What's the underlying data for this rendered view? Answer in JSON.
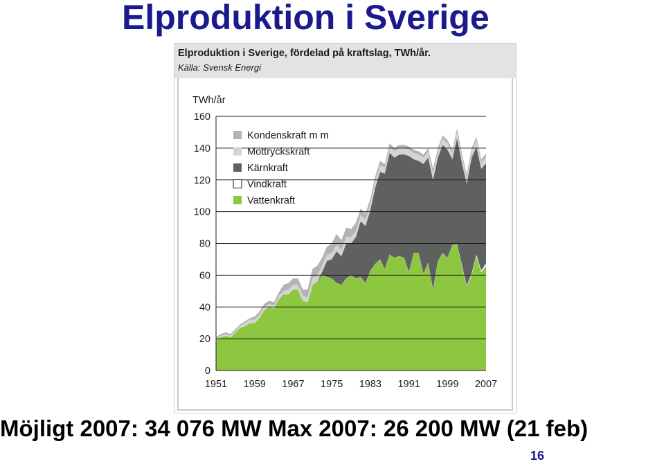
{
  "slide": {
    "title": "Elproduktion i Sverige",
    "bottom_text": "Möjligt 2007: 34 076 MW  Max 2007: 26 200 MW (21 feb)",
    "page_number": "16"
  },
  "figure": {
    "title": "Elproduktion i Sverige, fördelad på kraftslag, TWh/år.",
    "source": "Källa: Svensk Energi"
  },
  "chart_data": {
    "type": "area",
    "stacked": true,
    "ylabel": "TWh/år",
    "ylim": [
      0,
      160
    ],
    "yticks": [
      0,
      20,
      40,
      60,
      80,
      100,
      120,
      140,
      160
    ],
    "xlim": [
      1951,
      2007
    ],
    "xticks": [
      1951,
      1959,
      1967,
      1975,
      1983,
      1991,
      1999,
      2007
    ],
    "grid": "horizontal",
    "legend_position": "top-left",
    "x": [
      1951,
      1952,
      1953,
      1954,
      1955,
      1956,
      1957,
      1958,
      1959,
      1960,
      1961,
      1962,
      1963,
      1964,
      1965,
      1966,
      1967,
      1968,
      1969,
      1970,
      1971,
      1972,
      1973,
      1974,
      1975,
      1976,
      1977,
      1978,
      1979,
      1980,
      1981,
      1982,
      1983,
      1984,
      1985,
      1986,
      1987,
      1988,
      1989,
      1990,
      1991,
      1992,
      1993,
      1994,
      1995,
      1996,
      1997,
      1998,
      1999,
      2000,
      2001,
      2002,
      2003,
      2004,
      2005,
      2006,
      2007
    ],
    "series": [
      {
        "name": "Vattenkraft",
        "color": "#8dc63f",
        "values": [
          19,
          21,
          22,
          21,
          24,
          27,
          28,
          30,
          30,
          33,
          38,
          40,
          39,
          45,
          48,
          48,
          51,
          51,
          44,
          43,
          54,
          56,
          60,
          59,
          58,
          55,
          54,
          58,
          60,
          58,
          59,
          55,
          63,
          67,
          70,
          64,
          73,
          71,
          72,
          71,
          62,
          74,
          74,
          61,
          68,
          51,
          69,
          74,
          71,
          79,
          79,
          66,
          53,
          60,
          72,
          62,
          66
        ]
      },
      {
        "name": "Vindkraft",
        "color": "#ffffff",
        "values": [
          0,
          0,
          0,
          0,
          0,
          0,
          0,
          0,
          0,
          0,
          0,
          0,
          0,
          0,
          0,
          0,
          0,
          0,
          0,
          0,
          0,
          0,
          0,
          0,
          0,
          0,
          0,
          0,
          0,
          0,
          0,
          0,
          0,
          0,
          0,
          0,
          0,
          0,
          0,
          0,
          0,
          0,
          0,
          0,
          0,
          0,
          0,
          0,
          0,
          0,
          0.4,
          0.5,
          0.6,
          0.9,
          1,
          1,
          1.4
        ]
      },
      {
        "name": "Kärnkraft",
        "color": "#5f6161",
        "values": [
          0,
          0,
          0,
          0,
          0,
          0,
          0,
          0,
          0,
          0,
          0,
          0,
          0,
          0,
          0,
          0,
          0,
          0,
          0,
          0,
          0,
          0,
          2,
          10,
          12,
          20,
          18,
          22,
          20,
          26,
          35,
          36,
          38,
          48,
          55,
          60,
          64,
          63,
          64,
          65,
          73,
          59,
          58,
          69,
          66,
          69,
          65,
          68,
          68,
          54,
          67,
          64,
          64,
          73,
          68,
          64,
          63
        ]
      },
      {
        "name": "Mottryckskraft",
        "color": "#d4d4d4",
        "values": [
          1,
          1,
          1,
          1,
          1,
          1,
          2,
          2,
          2,
          2,
          2,
          2,
          2,
          2,
          2,
          3,
          3,
          3,
          3,
          3,
          4,
          4,
          4,
          4,
          4,
          4,
          4,
          4,
          4,
          4,
          4,
          4,
          4,
          4,
          4,
          4,
          4,
          4,
          4,
          4,
          4,
          4,
          4,
          4,
          4,
          4,
          4,
          4,
          4,
          4,
          4,
          4,
          4,
          4,
          4,
          4,
          4
        ]
      },
      {
        "name": "Kondenskraft m m",
        "color": "#b3b3b3",
        "values": [
          1,
          1,
          1,
          1,
          1,
          1,
          1,
          1,
          2,
          2,
          2,
          2,
          2,
          2,
          4,
          4,
          4,
          4,
          4,
          5,
          6,
          6,
          5,
          5,
          6,
          7,
          6,
          6,
          5,
          5,
          4,
          4,
          3,
          3,
          3,
          2,
          2,
          2,
          2,
          2,
          2,
          2,
          2,
          2,
          2,
          3,
          2,
          2,
          2,
          2,
          2,
          2,
          2,
          2,
          2,
          2,
          2
        ]
      }
    ]
  }
}
